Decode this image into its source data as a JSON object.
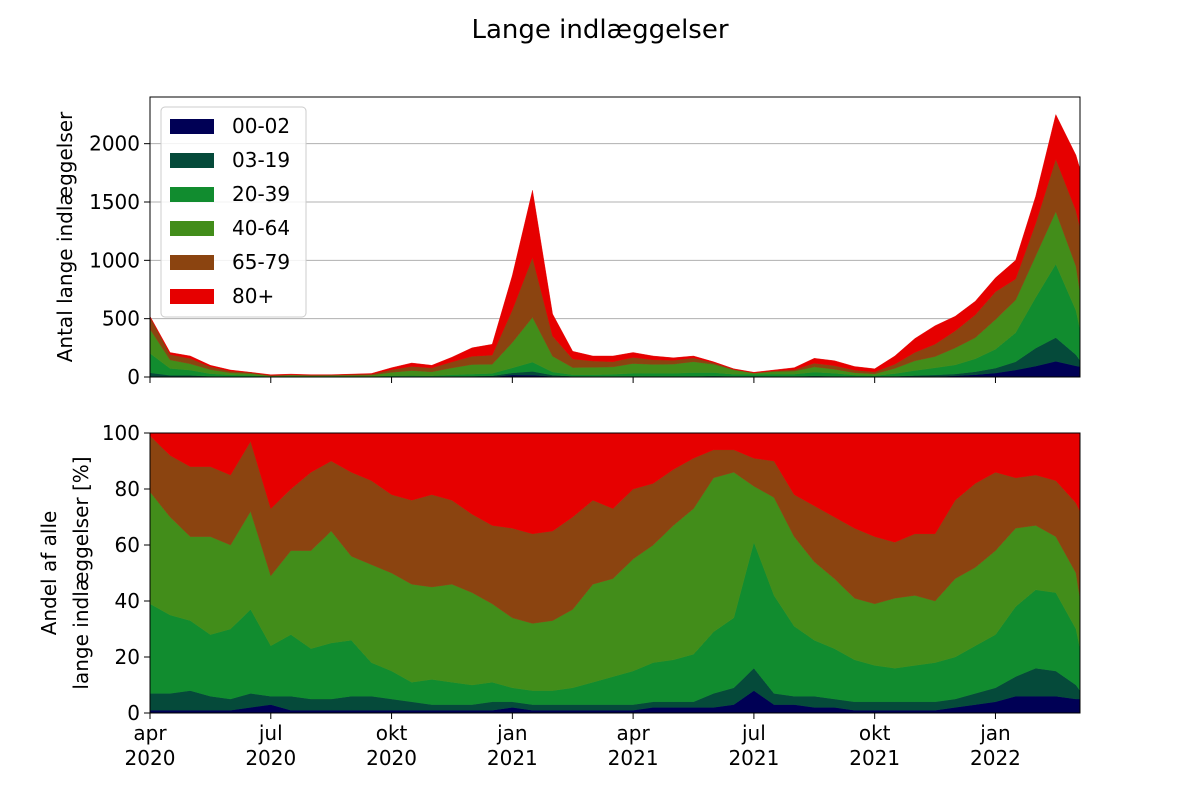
{
  "chart_data": [
    {
      "type": "area",
      "stacked": true,
      "title": "Lange indlæggelser",
      "ylabel": "Antal lange indlæggelser",
      "xlabel": "",
      "ylim": [
        0,
        2400
      ],
      "yticks": [
        0,
        500,
        1000,
        1500,
        2000
      ],
      "xticks": [
        {
          "month": 0,
          "line1": "apr",
          "line2": "2020"
        },
        {
          "month": 3,
          "line1": "jul",
          "line2": "2020"
        },
        {
          "month": 6,
          "line1": "okt",
          "line2": "2020"
        },
        {
          "month": 9,
          "line1": "jan",
          "line2": "2021"
        },
        {
          "month": 12,
          "line1": "apr",
          "line2": "2021"
        },
        {
          "month": 15,
          "line1": "jul",
          "line2": "2021"
        },
        {
          "month": 18,
          "line1": "okt",
          "line2": "2021"
        },
        {
          "month": 21,
          "line1": "jan",
          "line2": "2022"
        }
      ],
      "xlim_months": [
        0,
        23.1
      ],
      "grid": "y",
      "legend_position": "top-left",
      "colors": [
        "#000055",
        "#054a3a",
        "#118c2f",
        "#428d1a",
        "#8b4410",
        "#e60000"
      ],
      "series_names": [
        "00-02",
        "03-19",
        "20-39",
        "40-64",
        "65-79",
        "80+"
      ],
      "x_months": [
        0,
        0.5,
        1,
        1.5,
        2,
        2.5,
        3,
        3.5,
        4,
        4.5,
        5,
        5.5,
        6,
        6.5,
        7,
        7.5,
        8,
        8.5,
        9,
        9.5,
        10,
        10.5,
        11,
        11.5,
        12,
        12.5,
        13,
        13.5,
        14,
        14.5,
        15,
        15.5,
        16,
        16.5,
        17,
        17.5,
        18,
        18.5,
        19,
        19.5,
        20,
        20.5,
        21,
        21.5,
        22,
        22.5,
        23,
        23.1
      ],
      "totals": [
        520,
        210,
        180,
        100,
        60,
        40,
        20,
        25,
        20,
        20,
        25,
        30,
        80,
        120,
        100,
        170,
        250,
        280,
        870,
        1600,
        540,
        220,
        180,
        180,
        210,
        180,
        165,
        180,
        130,
        70,
        40,
        60,
        80,
        160,
        140,
        90,
        70,
        180,
        330,
        440,
        520,
        650,
        850,
        1000,
        1550,
        2250,
        1900,
        1780
      ],
      "shares_pct": {
        "00-02": [
          1,
          1,
          1,
          1,
          1,
          2,
          3,
          1,
          1,
          1,
          1,
          1,
          1,
          1,
          1,
          1,
          1,
          1,
          2,
          1,
          1,
          1,
          1,
          1,
          1,
          2,
          2,
          2,
          2,
          3,
          8,
          3,
          3,
          2,
          2,
          1,
          1,
          1,
          1,
          1,
          2,
          3,
          4,
          6,
          6,
          6,
          5,
          5
        ],
        "03-19": [
          6,
          6,
          7,
          5,
          4,
          5,
          3,
          5,
          4,
          4,
          5,
          5,
          4,
          3,
          2,
          2,
          2,
          3,
          2,
          2,
          2,
          2,
          2,
          2,
          2,
          2,
          2,
          2,
          5,
          6,
          8,
          4,
          3,
          4,
          3,
          3,
          3,
          3,
          3,
          3,
          3,
          4,
          5,
          7,
          10,
          9,
          5,
          3
        ],
        "20-39": [
          32,
          28,
          25,
          22,
          25,
          30,
          18,
          22,
          18,
          20,
          20,
          12,
          10,
          7,
          9,
          8,
          7,
          7,
          5,
          5,
          5,
          6,
          8,
          10,
          12,
          14,
          15,
          17,
          22,
          25,
          45,
          35,
          25,
          20,
          18,
          15,
          13,
          12,
          13,
          14,
          15,
          17,
          19,
          25,
          28,
          28,
          20,
          15
        ],
        "40-64": [
          40,
          35,
          30,
          35,
          30,
          35,
          25,
          30,
          35,
          40,
          30,
          35,
          35,
          35,
          33,
          35,
          33,
          28,
          25,
          24,
          25,
          28,
          35,
          35,
          40,
          42,
          48,
          52,
          55,
          52,
          20,
          35,
          32,
          28,
          25,
          22,
          22,
          25,
          25,
          22,
          28,
          28,
          30,
          28,
          23,
          20,
          20,
          18
        ],
        "65-79": [
          20,
          22,
          25,
          25,
          25,
          25,
          24,
          22,
          28,
          25,
          30,
          30,
          28,
          30,
          33,
          30,
          28,
          28,
          32,
          32,
          32,
          33,
          30,
          25,
          25,
          22,
          20,
          18,
          10,
          8,
          10,
          13,
          15,
          20,
          22,
          25,
          24,
          20,
          22,
          24,
          28,
          30,
          28,
          18,
          18,
          20,
          25,
          31
        ],
        "80+": [
          1,
          8,
          12,
          12,
          15,
          3,
          27,
          20,
          14,
          10,
          14,
          17,
          22,
          24,
          22,
          24,
          29,
          33,
          34,
          36,
          35,
          30,
          24,
          27,
          20,
          18,
          13,
          9,
          6,
          6,
          9,
          10,
          22,
          26,
          30,
          34,
          37,
          39,
          36,
          36,
          24,
          18,
          14,
          16,
          15,
          17,
          25,
          28
        ]
      }
    },
    {
      "type": "area",
      "stacked": true,
      "ylabel_line1": "Andel af alle",
      "ylabel_line2": "lange indlæggelser [%]",
      "ylim": [
        0,
        100
      ],
      "yticks": [
        0,
        20,
        40,
        60,
        80,
        100
      ],
      "grid": "none"
    }
  ]
}
